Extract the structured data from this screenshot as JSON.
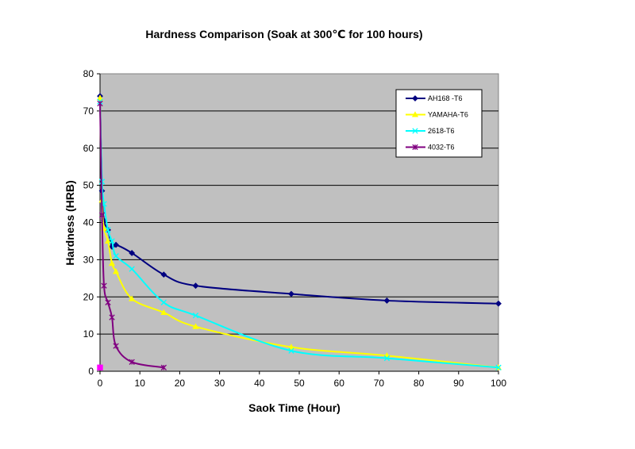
{
  "chart_data": {
    "type": "line",
    "title": "Hardness Comparison (Soak at 300℃ for 100 hours)",
    "xlabel": "Saok Time (Hour)",
    "ylabel": "Hardness (HRB)",
    "xlim": [
      0,
      100
    ],
    "ylim": [
      0,
      80
    ],
    "xticks": [
      0,
      10,
      20,
      30,
      40,
      50,
      60,
      70,
      80,
      90,
      100
    ],
    "yticks": [
      0,
      10,
      20,
      30,
      40,
      50,
      60,
      70,
      80
    ],
    "grid": "horizontal",
    "plot_background": "#C0C0C0",
    "legend_position": "top-right",
    "series": [
      {
        "name": "AH168 -T6",
        "color": "#000080",
        "marker": "diamond",
        "x": [
          0,
          0.5,
          1,
          2,
          3,
          4,
          8,
          16,
          24,
          48,
          72,
          100
        ],
        "y": [
          74,
          48.5,
          40.5,
          38,
          33.5,
          34,
          31.8,
          26,
          23,
          20.8,
          19,
          18.2
        ]
      },
      {
        "name": "YAMAHA-T6",
        "color": "#FFFF00",
        "marker": "triangle",
        "x": [
          0,
          0.5,
          1,
          2,
          3,
          4,
          8,
          16,
          24,
          48,
          72,
          100
        ],
        "y": [
          73.5,
          46,
          38.5,
          35,
          29,
          26.8,
          19.5,
          15.8,
          12,
          6.5,
          4.2,
          1
        ]
      },
      {
        "name": "2618-T6",
        "color": "#00FFFF",
        "marker": "x",
        "x": [
          0,
          0.5,
          1,
          2,
          3,
          4,
          8,
          16,
          24,
          48,
          72,
          100
        ],
        "y": [
          72.5,
          51,
          45,
          38,
          35,
          31,
          27.5,
          18.5,
          15,
          5.5,
          3.5,
          1
        ]
      },
      {
        "name": "4032-T6",
        "color": "#800080",
        "marker": "star",
        "x": [
          0,
          0.5,
          1,
          2,
          3,
          4,
          8,
          16
        ],
        "y": [
          72,
          42,
          23,
          18.5,
          14.5,
          6.8,
          2.5,
          1
        ]
      }
    ],
    "extra_points": [
      {
        "x": 0,
        "y": 1,
        "color": "#FF00FF",
        "marker": "square"
      }
    ]
  }
}
